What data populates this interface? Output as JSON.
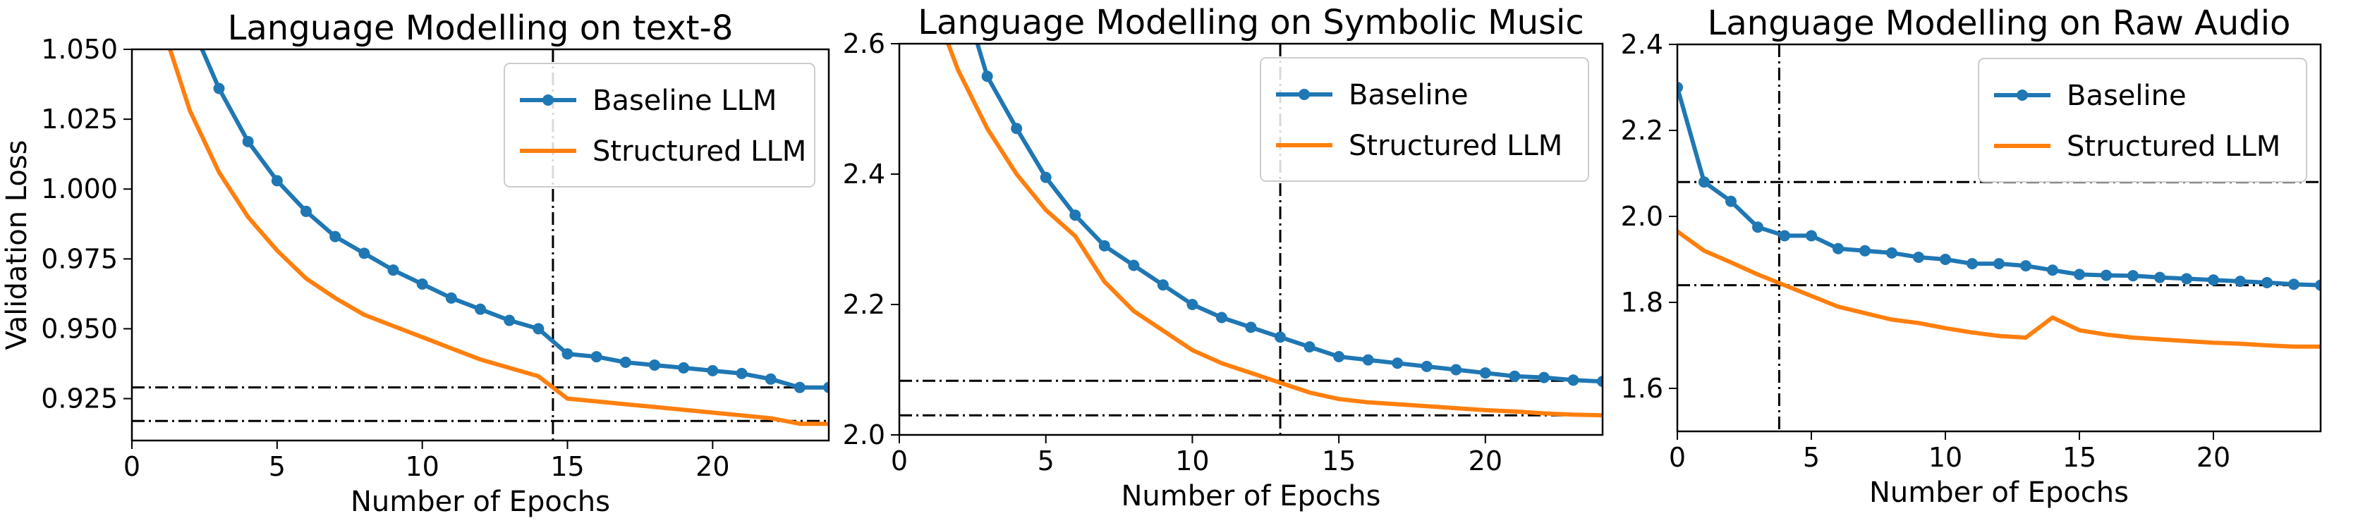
{
  "colors": {
    "baseline": "#1f77b4",
    "structured": "#ff7f0e",
    "ref": "#000000"
  },
  "chart_data": [
    {
      "type": "line",
      "title": "Language Modelling on text-8",
      "xlabel": "Number of Epochs",
      "ylabel": "Validation Loss",
      "xlim": [
        0,
        24
      ],
      "ylim": [
        0.91,
        1.05
      ],
      "xticks": [
        "0",
        "5",
        "10",
        "15",
        "20"
      ],
      "yticks": [
        "0.925",
        "0.950",
        "0.975",
        "1.000",
        "1.025",
        "1.050"
      ],
      "legend_position": "top-right",
      "grid": false,
      "vlines": [
        14.5
      ],
      "hlines": [
        0.929,
        0.917
      ],
      "series": [
        {
          "name": "Baseline LLM",
          "color": "#1f77b4",
          "marker": true,
          "x": [
            1,
            2,
            3,
            4,
            5,
            6,
            7,
            8,
            9,
            10,
            11,
            12,
            13,
            14,
            15,
            16,
            17,
            18,
            19,
            20,
            21,
            22,
            23,
            24
          ],
          "y": [
            1.1,
            1.06,
            1.036,
            1.017,
            1.003,
            0.992,
            0.983,
            0.977,
            0.971,
            0.966,
            0.961,
            0.957,
            0.953,
            0.95,
            0.941,
            0.94,
            0.938,
            0.937,
            0.936,
            0.935,
            0.934,
            0.932,
            0.929,
            0.929
          ]
        },
        {
          "name": "Structured LLM",
          "color": "#ff7f0e",
          "marker": false,
          "x": [
            1,
            2,
            3,
            4,
            5,
            6,
            7,
            8,
            9,
            10,
            11,
            12,
            13,
            14,
            14.5,
            15,
            16,
            17,
            18,
            19,
            20,
            21,
            22,
            23,
            24
          ],
          "y": [
            1.06,
            1.028,
            1.006,
            0.99,
            0.978,
            0.968,
            0.961,
            0.955,
            0.951,
            0.947,
            0.943,
            0.939,
            0.936,
            0.933,
            0.929,
            0.925,
            0.924,
            0.923,
            0.922,
            0.921,
            0.92,
            0.919,
            0.918,
            0.916,
            0.916
          ]
        }
      ]
    },
    {
      "type": "line",
      "title": "Language Modelling on Symbolic Music",
      "xlabel": "Number of Epochs",
      "ylabel": "",
      "xlim": [
        0,
        24
      ],
      "ylim": [
        2.0,
        2.6
      ],
      "xticks": [
        "0",
        "5",
        "10",
        "15",
        "20"
      ],
      "yticks": [
        "2.0",
        "2.2",
        "2.4",
        "2.6"
      ],
      "legend_position": "top-right",
      "grid": false,
      "vlines": [
        13
      ],
      "hlines": [
        2.083,
        2.03
      ],
      "series": [
        {
          "name": "Baseline",
          "color": "#1f77b4",
          "marker": true,
          "x": [
            2,
            3,
            4,
            5,
            6,
            7,
            8,
            9,
            10,
            11,
            12,
            13,
            14,
            15,
            16,
            17,
            18,
            19,
            20,
            21,
            22,
            23,
            24
          ],
          "y": [
            2.7,
            2.55,
            2.47,
            2.395,
            2.337,
            2.29,
            2.26,
            2.23,
            2.2,
            2.18,
            2.165,
            2.15,
            2.135,
            2.12,
            2.115,
            2.11,
            2.105,
            2.1,
            2.095,
            2.09,
            2.088,
            2.084,
            2.082
          ]
        },
        {
          "name": "Structured LLM",
          "color": "#ff7f0e",
          "marker": false,
          "x": [
            1.5,
            2,
            3,
            4,
            5,
            6,
            7,
            8,
            9,
            10,
            11,
            12,
            13,
            14,
            15,
            16,
            17,
            18,
            19,
            20,
            21,
            22,
            23,
            24
          ],
          "y": [
            2.62,
            2.56,
            2.47,
            2.4,
            2.345,
            2.305,
            2.235,
            2.19,
            2.16,
            2.13,
            2.11,
            2.095,
            2.08,
            2.065,
            2.055,
            2.05,
            2.047,
            2.044,
            2.041,
            2.038,
            2.036,
            2.033,
            2.031,
            2.03
          ]
        }
      ]
    },
    {
      "type": "line",
      "title": "Language Modelling on Raw Audio",
      "xlabel": "Number of Epochs",
      "ylabel": "",
      "xlim": [
        0,
        24
      ],
      "ylim": [
        1.5,
        2.4
      ],
      "xticks": [
        "0",
        "5",
        "10",
        "15",
        "20"
      ],
      "yticks": [
        "1.6",
        "1.8",
        "2.0",
        "2.2",
        "2.4"
      ],
      "legend_position": "top-right",
      "grid": false,
      "vlines": [
        3.8
      ],
      "hlines": [
        2.08,
        1.84
      ],
      "series": [
        {
          "name": "Baseline",
          "color": "#1f77b4",
          "marker": true,
          "x": [
            0,
            1,
            2,
            3,
            4,
            5,
            6,
            7,
            8,
            9,
            10,
            11,
            12,
            13,
            14,
            15,
            16,
            17,
            18,
            19,
            20,
            21,
            22,
            23,
            24
          ],
          "y": [
            2.3,
            2.08,
            2.035,
            1.975,
            1.955,
            1.955,
            1.925,
            1.92,
            1.915,
            1.905,
            1.9,
            1.89,
            1.89,
            1.885,
            1.875,
            1.865,
            1.863,
            1.862,
            1.858,
            1.855,
            1.852,
            1.849,
            1.846,
            1.842,
            1.84
          ]
        },
        {
          "name": "Structured LLM",
          "color": "#ff7f0e",
          "marker": false,
          "x": [
            0,
            1,
            2,
            3,
            4,
            5,
            6,
            7,
            8,
            9,
            10,
            11,
            12,
            13,
            14,
            15,
            16,
            17,
            18,
            19,
            20,
            21,
            22,
            23,
            24
          ],
          "y": [
            1.965,
            1.92,
            1.893,
            1.865,
            1.84,
            1.815,
            1.79,
            1.775,
            1.76,
            1.752,
            1.74,
            1.73,
            1.722,
            1.718,
            1.765,
            1.735,
            1.725,
            1.718,
            1.714,
            1.71,
            1.706,
            1.704,
            1.7,
            1.697,
            1.697
          ]
        }
      ]
    }
  ]
}
